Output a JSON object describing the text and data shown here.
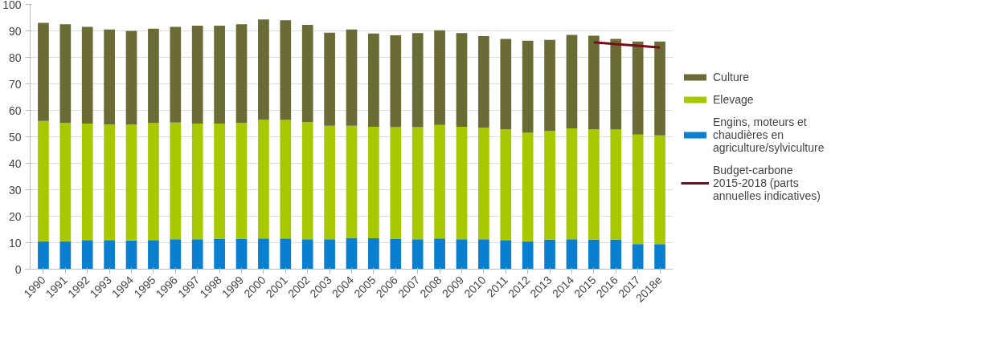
{
  "chart_data": {
    "type": "bar",
    "stacked": true,
    "categories": [
      "1990",
      "1991",
      "1992",
      "1993",
      "1994",
      "1995",
      "1996",
      "1997",
      "1998",
      "1999",
      "2000",
      "2001",
      "2002",
      "2003",
      "2004",
      "2005",
      "2006",
      "2007",
      "2008",
      "2009",
      "2010",
      "2011",
      "2012",
      "2013",
      "2014",
      "2015",
      "2016",
      "2017",
      "2018e"
    ],
    "series": [
      {
        "name": "Engins, moteurs et chaudières en agriculture/sylviculture",
        "color": "#0a7fd0",
        "values": [
          10.5,
          10.5,
          11,
          11,
          10.8,
          11,
          11.3,
          11.3,
          11.5,
          11.5,
          11.6,
          11.6,
          11.3,
          11.3,
          11.8,
          11.7,
          11.5,
          11.3,
          11.6,
          11.3,
          11.3,
          11,
          10.5,
          11.2,
          11.3,
          11.2,
          11.2,
          9.5,
          9.5
        ]
      },
      {
        "name": "Elevage",
        "color": "#a8c800",
        "values": [
          45.5,
          44.8,
          44,
          43.7,
          43.8,
          44.2,
          44.1,
          43.7,
          43.5,
          43.8,
          44.9,
          44.8,
          44.2,
          42.9,
          42.4,
          42.1,
          42.1,
          42.3,
          42.9,
          42.5,
          42.2,
          41.8,
          41,
          41,
          41.9,
          41.6,
          41.5,
          41.3,
          41
        ]
      },
      {
        "name": "Culture",
        "color": "#6b6b35",
        "values": [
          37,
          37.2,
          36.5,
          35.8,
          35.4,
          35.6,
          36.1,
          37,
          37,
          37.2,
          37.8,
          37.6,
          36.8,
          35.1,
          36.3,
          35.2,
          34.7,
          35.6,
          35.7,
          35.4,
          34.5,
          34.2,
          34.8,
          34.4,
          35.3,
          35.4,
          34.3,
          35.2,
          35.5
        ]
      },
      {
        "name": "Budget-carbone 2015-2018 (parts annuelles indicatives)",
        "type": "line",
        "color": "#7b0c1c",
        "values": [
          null,
          null,
          null,
          null,
          null,
          null,
          null,
          null,
          null,
          null,
          null,
          null,
          null,
          null,
          null,
          null,
          null,
          null,
          null,
          null,
          null,
          null,
          null,
          null,
          null,
          85.7,
          85.0,
          84.4,
          83.7
        ]
      }
    ],
    "ylim": [
      0,
      100
    ],
    "yticks": [
      0,
      10,
      20,
      30,
      40,
      50,
      60,
      70,
      80,
      90,
      100
    ],
    "grid": "y",
    "legend": "right"
  }
}
